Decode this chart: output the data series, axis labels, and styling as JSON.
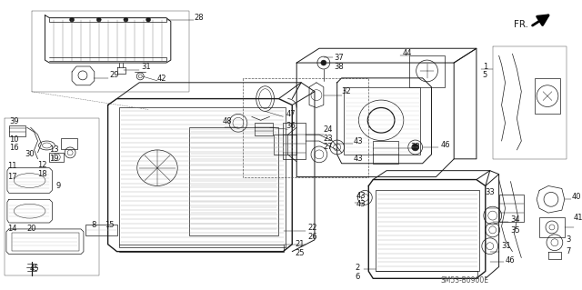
{
  "bg_color": "#ffffff",
  "diagram_code": "SM53-B0900E",
  "figsize": [
    6.4,
    3.19
  ],
  "dpi": 100
}
